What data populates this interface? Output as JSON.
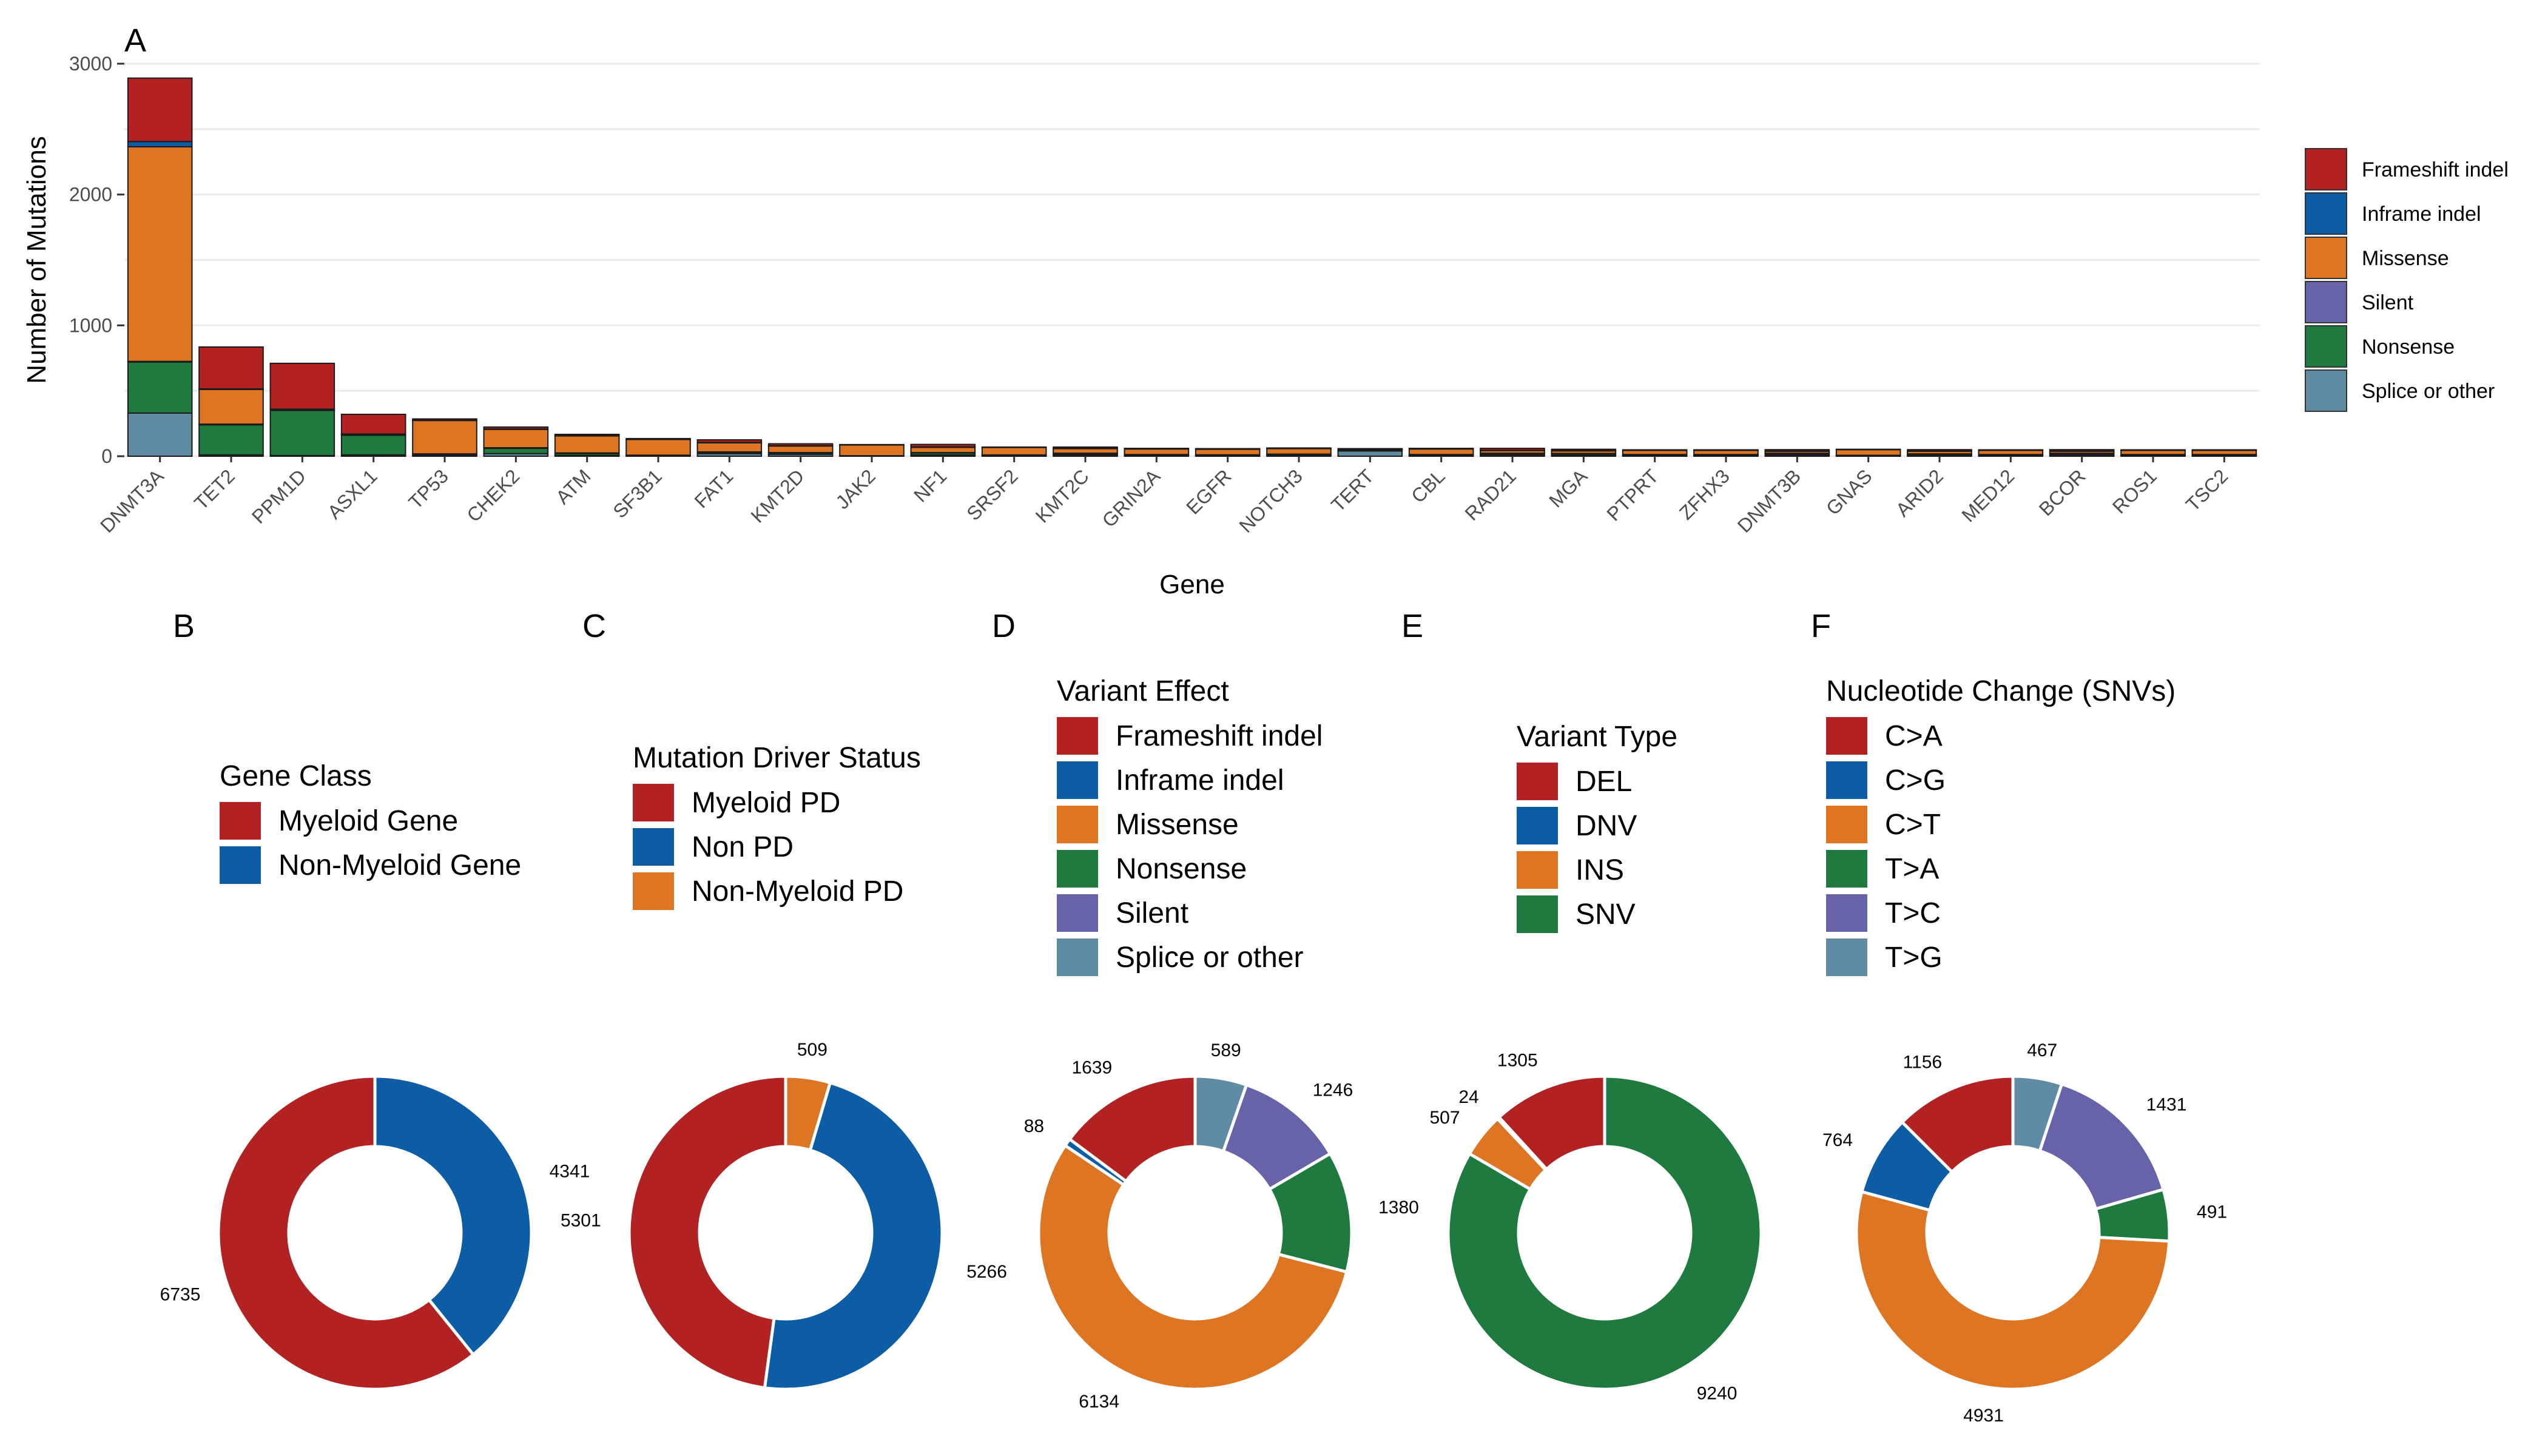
{
  "colors": {
    "red": "#B22222",
    "blue": "#0C5DA5",
    "orange": "#DD7522",
    "green": "#1F7A3F",
    "purple": "#6763A8",
    "slate": "#5F8BA3"
  },
  "chart_data": [
    {
      "panel": "A",
      "type": "bar",
      "stacked": true,
      "xlabel": "Gene",
      "ylabel": "Number of Mutations",
      "ylim": [
        0,
        3000
      ],
      "yticks": [
        0,
        1000,
        2000,
        3000
      ],
      "grid": true,
      "legend": "right",
      "categories": [
        "DNMT3A",
        "TET2",
        "PPM1D",
        "ASXL1",
        "TP53",
        "CHEK2",
        "ATM",
        "SF3B1",
        "FAT1",
        "KMT2D",
        "JAK2",
        "NF1",
        "SRSF2",
        "KMT2C",
        "GRIN2A",
        "EGFR",
        "NOTCH3",
        "TERT",
        "CBL",
        "RAD21",
        "MGA",
        "PTPRT",
        "ZFHX3",
        "DNMT3B",
        "GNAS",
        "ARID2",
        "MED12",
        "BCOR",
        "ROS1",
        "TSC2"
      ],
      "series": [
        {
          "name": "Splice or other",
          "color": "#5F8BA3",
          "values": [
            330,
            10,
            5,
            10,
            8,
            20,
            5,
            3,
            20,
            15,
            2,
            10,
            5,
            10,
            5,
            5,
            8,
            40,
            5,
            10,
            8,
            5,
            5,
            10,
            3,
            5,
            5,
            10,
            5,
            5
          ]
        },
        {
          "name": "Nonsense",
          "color": "#1F7A3F",
          "values": [
            390,
            230,
            345,
            150,
            5,
            40,
            15,
            2,
            10,
            10,
            1,
            15,
            3,
            10,
            5,
            3,
            5,
            5,
            5,
            10,
            10,
            5,
            5,
            10,
            2,
            10,
            5,
            10,
            5,
            5
          ]
        },
        {
          "name": "Silent",
          "color": "#6763A8",
          "values": [
            5,
            5,
            3,
            3,
            5,
            5,
            5,
            3,
            3,
            3,
            1,
            3,
            2,
            3,
            3,
            3,
            3,
            3,
            3,
            3,
            3,
            3,
            3,
            3,
            2,
            3,
            3,
            3,
            3,
            3
          ]
        },
        {
          "name": "Missense",
          "color": "#DD7522",
          "values": [
            1640,
            265,
            5,
            5,
            255,
            140,
            130,
            120,
            70,
            50,
            82,
            40,
            57,
            35,
            42,
            42,
            42,
            5,
            42,
            20,
            20,
            32,
            32,
            15,
            43,
            20,
            32,
            15,
            32,
            32
          ]
        },
        {
          "name": "Inframe indel",
          "color": "#0C5DA5",
          "values": [
            40,
            5,
            2,
            2,
            2,
            3,
            2,
            2,
            2,
            2,
            1,
            2,
            1,
            2,
            1,
            1,
            1,
            1,
            2,
            2,
            2,
            1,
            1,
            2,
            1,
            2,
            1,
            2,
            1,
            1
          ]
        },
        {
          "name": "Frameshift indel",
          "color": "#B22222",
          "values": [
            485,
            320,
            350,
            150,
            10,
            15,
            10,
            5,
            20,
            15,
            2,
            20,
            2,
            10,
            4,
            4,
            4,
            4,
            3,
            15,
            10,
            3,
            3,
            10,
            2,
            10,
            3,
            10,
            3,
            3
          ]
        }
      ]
    },
    {
      "panel": "B",
      "type": "pie",
      "legend_title": "Gene Class",
      "slices": [
        {
          "label": "Myeloid Gene",
          "value": 6735,
          "color": "#B22222"
        },
        {
          "label": "Non-Myeloid Gene",
          "value": 4341,
          "color": "#0C5DA5"
        }
      ]
    },
    {
      "panel": "C",
      "type": "pie",
      "legend_title": "Mutation Driver Status",
      "slices": [
        {
          "label": "Myeloid PD",
          "value": 5301,
          "color": "#B22222"
        },
        {
          "label": "Non PD",
          "value": 5266,
          "color": "#0C5DA5"
        },
        {
          "label": "Non-Myeloid PD",
          "value": 509,
          "color": "#DD7522"
        }
      ]
    },
    {
      "panel": "D",
      "type": "pie",
      "legend_title": "Variant Effect",
      "slices": [
        {
          "label": "Frameshift indel",
          "value": 1639,
          "color": "#B22222"
        },
        {
          "label": "Inframe indel",
          "value": 88,
          "color": "#0C5DA5"
        },
        {
          "label": "Missense",
          "value": 6134,
          "color": "#DD7522"
        },
        {
          "label": "Nonsense",
          "value": 1380,
          "color": "#1F7A3F"
        },
        {
          "label": "Silent",
          "value": 1246,
          "color": "#6763A8"
        },
        {
          "label": "Splice or other",
          "value": 589,
          "color": "#5F8BA3"
        }
      ]
    },
    {
      "panel": "E",
      "type": "pie",
      "legend_title": "Variant Type",
      "slices": [
        {
          "label": "DEL",
          "value": 1305,
          "color": "#B22222"
        },
        {
          "label": "DNV",
          "value": 24,
          "color": "#0C5DA5"
        },
        {
          "label": "INS",
          "value": 507,
          "color": "#DD7522"
        },
        {
          "label": "SNV",
          "value": 9240,
          "color": "#1F7A3F"
        }
      ]
    },
    {
      "panel": "F",
      "type": "pie",
      "legend_title": "Nucleotide Change (SNVs)",
      "slices": [
        {
          "label": "C>A",
          "value": 1156,
          "color": "#B22222"
        },
        {
          "label": "C>G",
          "value": 764,
          "color": "#0C5DA5"
        },
        {
          "label": "C>T",
          "value": 4931,
          "color": "#DD7522"
        },
        {
          "label": "T>A",
          "value": 491,
          "color": "#1F7A3F"
        },
        {
          "label": "T>C",
          "value": 1431,
          "color": "#6763A8"
        },
        {
          "label": "T>G",
          "value": 467,
          "color": "#5F8BA3"
        }
      ]
    }
  ]
}
